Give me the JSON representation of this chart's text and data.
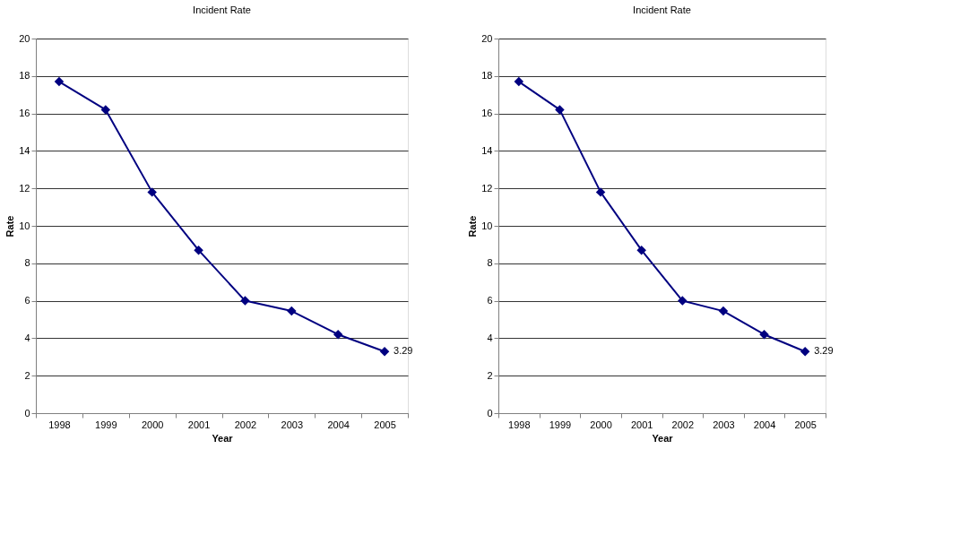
{
  "chart_data": [
    {
      "type": "line",
      "title": "Incident Rate",
      "xlabel": "Year",
      "ylabel": "Rate",
      "categories": [
        "1998",
        "1999",
        "2000",
        "2001",
        "2002",
        "2003",
        "2004",
        "2005"
      ],
      "series": [
        {
          "color": "#000080",
          "values": [
            17.7,
            16.2,
            11.8,
            8.7,
            6.0,
            5.45,
            4.2,
            3.29
          ],
          "value_labels": [
            null,
            null,
            null,
            null,
            null,
            null,
            null,
            "3.29"
          ]
        }
      ],
      "ylim": [
        0,
        20
      ],
      "yticks": [
        0,
        2,
        4,
        6,
        8,
        10,
        12,
        14,
        16,
        18,
        20
      ],
      "grid": "y",
      "legend": false,
      "marker": "diamond",
      "line_style": "solid"
    },
    {
      "type": "line",
      "title": "Incident Rate",
      "xlabel": "Year",
      "ylabel": "Rate",
      "categories": [
        "1998",
        "1999",
        "2000",
        "2001",
        "2002",
        "2003",
        "2004",
        "2005"
      ],
      "series": [
        {
          "color": "#000080",
          "values": [
            17.7,
            16.2,
            11.8,
            8.7,
            6.0,
            5.45,
            4.2,
            3.29
          ],
          "value_labels": [
            null,
            null,
            null,
            null,
            null,
            null,
            null,
            "3.29"
          ]
        }
      ],
      "ylim": [
        0,
        20
      ],
      "yticks": [
        0,
        2,
        4,
        6,
        8,
        10,
        12,
        14,
        16,
        18,
        20
      ],
      "grid": "y",
      "legend": false,
      "marker": "diamond",
      "line_style": "solid"
    }
  ]
}
